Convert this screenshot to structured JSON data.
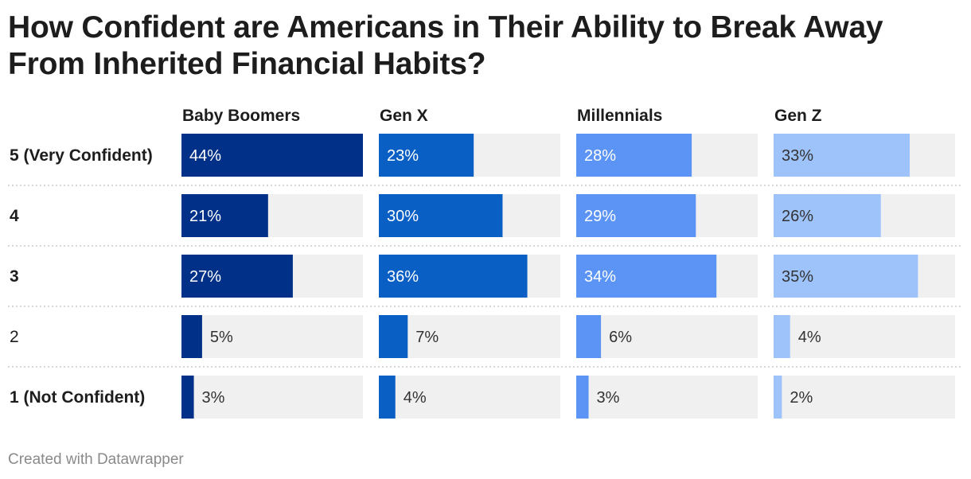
{
  "title": "How Confident are Americans in Their Ability to Break Away From Inherited Financial Habits?",
  "footer": "Created with Datawrapper",
  "colors": {
    "track": "#f0f0f0",
    "separator": "#cccccc",
    "label_light": "#ffffff",
    "label_dark": "#333333",
    "series": [
      "#003087",
      "#0a5fc4",
      "#5b94f5",
      "#9ec3fb"
    ]
  },
  "chart_data": {
    "type": "bar",
    "title": "How Confident are Americans in Their Ability to Break Away From Inherited Financial Habits?",
    "categories": [
      "5 (Very Confident)",
      "4",
      "3",
      "2",
      "1 (Not Confident)"
    ],
    "bold_categories": [
      "5 (Very Confident)",
      "4",
      "3",
      "1 (Not Confident)"
    ],
    "unit": "%",
    "xlim": [
      0,
      44
    ],
    "series": [
      {
        "name": "Baby Boomers",
        "values": [
          44,
          21,
          27,
          5,
          3
        ]
      },
      {
        "name": "Gen X",
        "values": [
          23,
          30,
          36,
          7,
          4
        ]
      },
      {
        "name": "Millennials",
        "values": [
          28,
          29,
          34,
          6,
          3
        ]
      },
      {
        "name": "Gen Z",
        "values": [
          33,
          26,
          35,
          4,
          2
        ]
      }
    ]
  }
}
